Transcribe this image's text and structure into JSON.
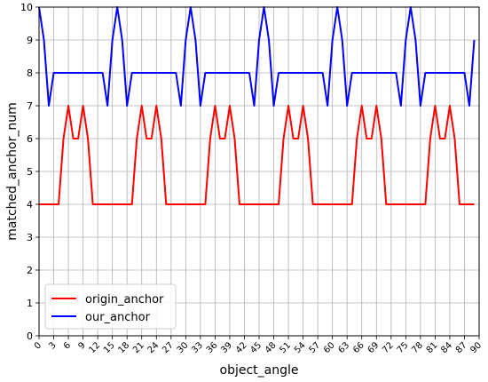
{
  "chart_data": {
    "type": "line",
    "xlabel": "object_angle",
    "ylabel": "matched_anchor_num",
    "xlim": [
      0,
      90
    ],
    "ylim": [
      0,
      10
    ],
    "x_ticks": [
      0,
      3,
      6,
      9,
      12,
      15,
      18,
      21,
      24,
      27,
      30,
      33,
      36,
      39,
      42,
      45,
      48,
      51,
      54,
      57,
      60,
      63,
      66,
      69,
      72,
      75,
      78,
      81,
      84,
      87,
      90
    ],
    "y_ticks": [
      0,
      1,
      2,
      3,
      4,
      5,
      6,
      7,
      8,
      9,
      10
    ],
    "grid": true,
    "legend_position": "lower-left",
    "x": [
      0,
      1,
      2,
      3,
      4,
      5,
      6,
      7,
      8,
      9,
      10,
      11,
      12,
      13,
      14,
      15,
      16,
      17,
      18,
      19,
      20,
      21,
      22,
      23,
      24,
      25,
      26,
      27,
      28,
      29,
      30,
      31,
      32,
      33,
      34,
      35,
      36,
      37,
      38,
      39,
      40,
      41,
      42,
      43,
      44,
      45,
      46,
      47,
      48,
      49,
      50,
      51,
      52,
      53,
      54,
      55,
      56,
      57,
      58,
      59,
      60,
      61,
      62,
      63,
      64,
      65,
      66,
      67,
      68,
      69,
      70,
      71,
      72,
      73,
      74,
      75,
      76,
      77,
      78,
      79,
      80,
      81,
      82,
      83,
      84,
      85,
      86,
      87,
      88,
      89
    ],
    "series": [
      {
        "name": "origin_anchor",
        "color": "#ff0000",
        "values": [
          4,
          4,
          4,
          4,
          4,
          6,
          7,
          6,
          6,
          7,
          6,
          4,
          4,
          4,
          4,
          4,
          4,
          4,
          4,
          4,
          6,
          7,
          6,
          6,
          7,
          6,
          4,
          4,
          4,
          4,
          4,
          4,
          4,
          4,
          4,
          6,
          7,
          6,
          6,
          7,
          6,
          4,
          4,
          4,
          4,
          4,
          4,
          4,
          4,
          4,
          6,
          7,
          6,
          6,
          7,
          6,
          4,
          4,
          4,
          4,
          4,
          4,
          4,
          4,
          4,
          6,
          7,
          6,
          6,
          7,
          6,
          4,
          4,
          4,
          4,
          4,
          4,
          4,
          4,
          4,
          6,
          7,
          6,
          6,
          7,
          6,
          4,
          4,
          4,
          4
        ]
      },
      {
        "name": "our_anchor",
        "color": "#0000ff",
        "values": [
          10,
          9,
          7,
          8,
          8,
          8,
          8,
          8,
          8,
          8,
          8,
          8,
          8,
          8,
          7,
          9,
          10,
          9,
          7,
          8,
          8,
          8,
          8,
          8,
          8,
          8,
          8,
          8,
          8,
          7,
          9,
          10,
          9,
          7,
          8,
          8,
          8,
          8,
          8,
          8,
          8,
          8,
          8,
          8,
          7,
          9,
          10,
          9,
          7,
          8,
          8,
          8,
          8,
          8,
          8,
          8,
          8,
          8,
          8,
          7,
          9,
          10,
          9,
          7,
          8,
          8,
          8,
          8,
          8,
          8,
          8,
          8,
          8,
          8,
          7,
          9,
          10,
          9,
          7,
          8,
          8,
          8,
          8,
          8,
          8,
          8,
          8,
          8,
          7,
          9
        ]
      }
    ]
  }
}
